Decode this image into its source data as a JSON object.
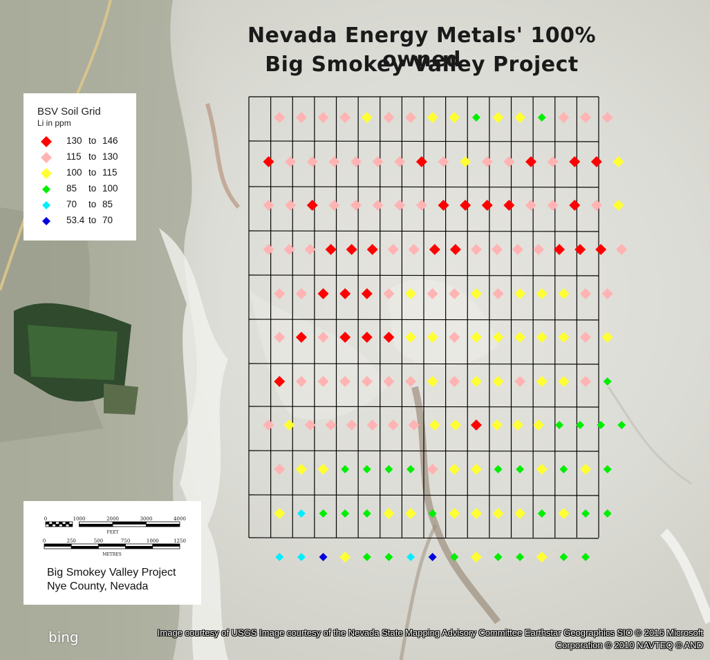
{
  "title": {
    "line1": "Nevada Energy Metals' 100% owned",
    "line2": "Big Smokey Valley Project"
  },
  "legend": {
    "title": "BSV Soil Grid",
    "subtitle": "Li in ppm",
    "classes": [
      {
        "key": "r",
        "low": "130",
        "to": "to",
        "high": "146",
        "color": "#ff0000",
        "size": "large"
      },
      {
        "key": "p",
        "low": "115",
        "to": "to",
        "high": "130",
        "color": "#ffb3b3",
        "size": "large"
      },
      {
        "key": "y",
        "low": "100",
        "to": "to",
        "high": "115",
        "color": "#ffff33",
        "size": "large"
      },
      {
        "key": "g",
        "low": "85",
        "to": "to",
        "high": "100",
        "color": "#00ee00",
        "size": "small"
      },
      {
        "key": "c",
        "low": "70",
        "to": "to",
        "high": "85",
        "color": "#00eeff",
        "size": "small"
      },
      {
        "key": "b",
        "low": "53.4",
        "to": "to",
        "high": "70",
        "color": "#0000dd",
        "size": "small"
      }
    ]
  },
  "scale": {
    "feet_ticks": [
      "0",
      "1000",
      "2000",
      "3000",
      "4000"
    ],
    "feet_label": "FEET",
    "metre_ticks": [
      "0",
      "250",
      "500",
      "750",
      "1000",
      "1250"
    ],
    "metre_label": "METRES"
  },
  "location": {
    "project": "Big Smokey Valley Project",
    "county": "Nye County, Nevada"
  },
  "attribution": {
    "line1": "Image courtesy of USGS Image courtesy of the Nevada State Mapping Advisory Committee Earthstar Geographics  SIO © 2016 Microsoft",
    "line2": "Corporation © 2010 NAVTEQ © AND",
    "logo": "bing"
  },
  "samples": {
    "rows": [
      "ppppyppyygyygppp",
      "rpppppprpypprprry",
      "pprppppprrrrpprpy",
      "ppprrrpprrpppprrrp",
      "pprrrpyppypyyypp",
      "prprrryypyyyyypy",
      "rppppppypyypyypg",
      "pyppppppyyryyygggg",
      "pyyggggpyyggygyg",
      "ycgggyygyyyygygg",
      "ccbyggcbgyggygg"
    ]
  }
}
